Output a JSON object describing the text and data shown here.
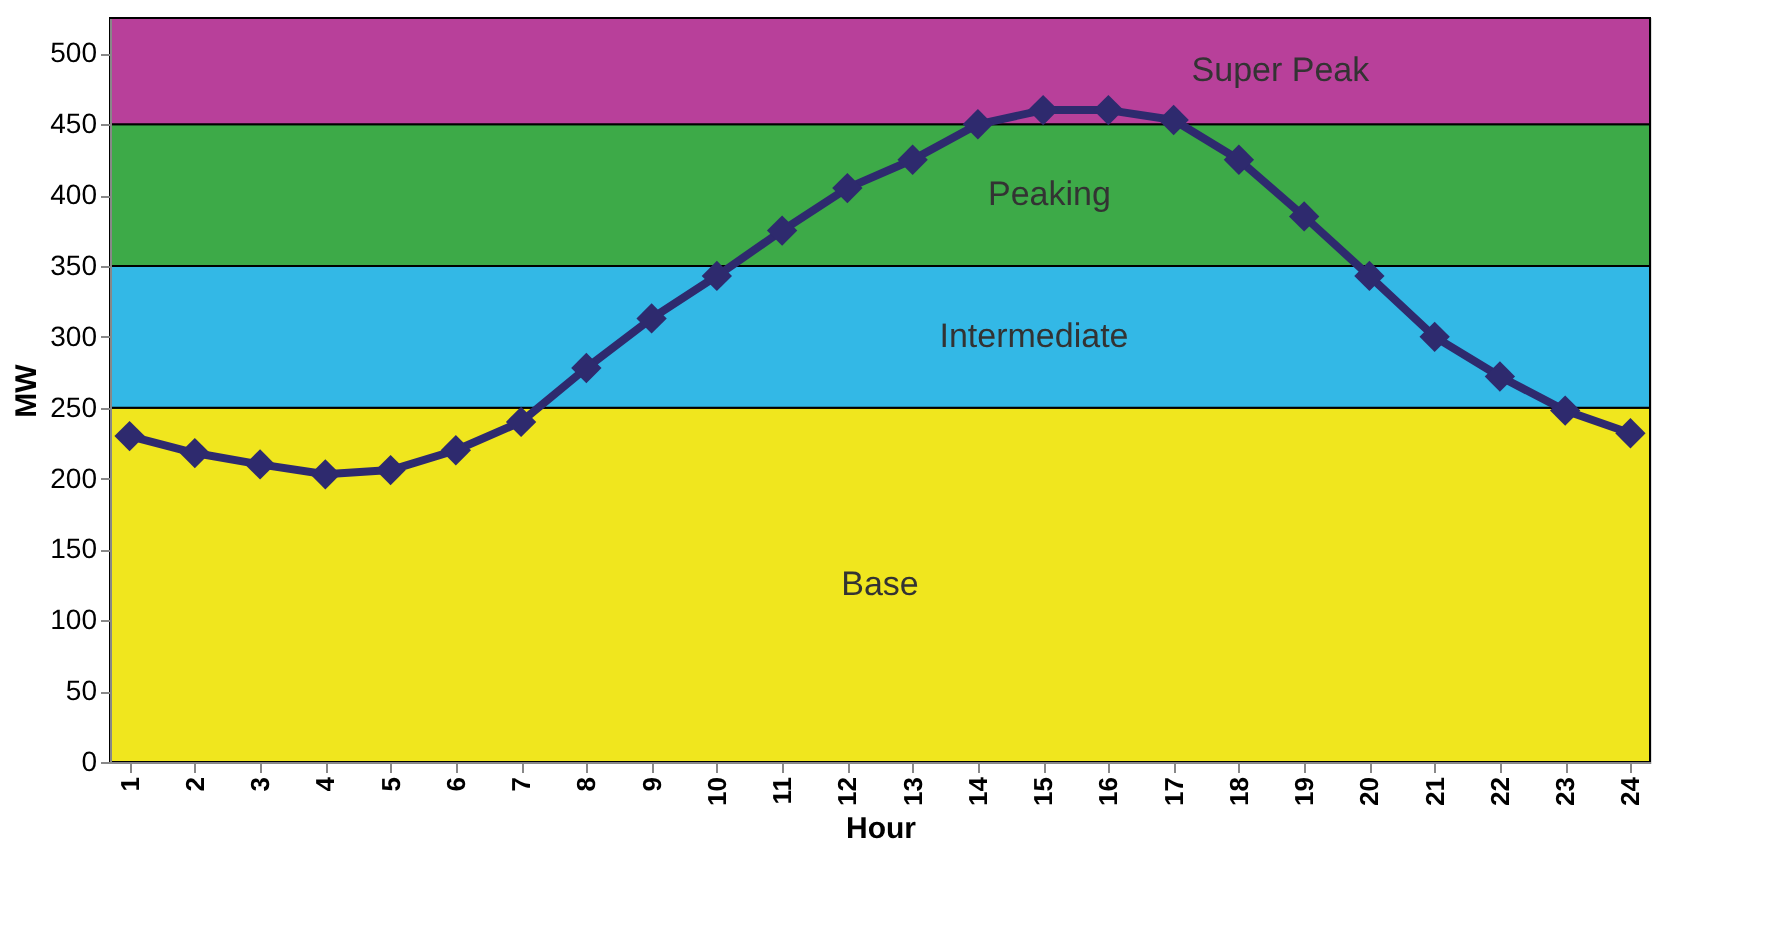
{
  "chart_data": {
    "type": "line",
    "xlabel": "Hour",
    "ylabel": "MW",
    "categories": [
      "1",
      "2",
      "3",
      "4",
      "5",
      "6",
      "7",
      "8",
      "9",
      "10",
      "11",
      "12",
      "13",
      "14",
      "15",
      "16",
      "17",
      "18",
      "19",
      "20",
      "21",
      "22",
      "23",
      "24"
    ],
    "series": [
      {
        "color": "#2e2a6e",
        "values": [
          230,
          218,
          210,
          203,
          206,
          220,
          240,
          278,
          313,
          343,
          375,
          405,
          425,
          450,
          460,
          460,
          453,
          425,
          385,
          343,
          300,
          272,
          248,
          232
        ]
      }
    ],
    "ylim": [
      0,
      525
    ],
    "yticks": [
      0,
      50,
      100,
      150,
      200,
      250,
      300,
      350,
      400,
      450,
      500
    ],
    "bands": [
      {
        "axis": "y",
        "from": 0,
        "to": 250,
        "label": "Base",
        "color": "#f0e61e"
      },
      {
        "axis": "y",
        "from": 250,
        "to": 350,
        "label": "Intermediate",
        "color": "#33b8e6"
      },
      {
        "axis": "y",
        "from": 350,
        "to": 450,
        "label": "Peaking",
        "color": "#3daa48"
      },
      {
        "axis": "y",
        "from": 450,
        "to": 525,
        "label": "Super Peak",
        "color": "#b8409a"
      }
    ],
    "marker": "diamond",
    "line_style": "solid"
  }
}
